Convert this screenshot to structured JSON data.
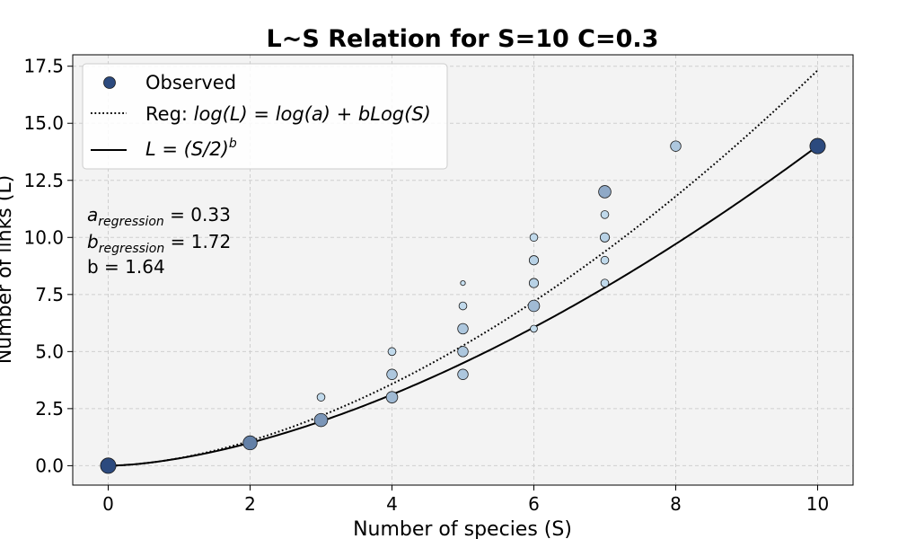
{
  "chart_data": {
    "type": "scatter",
    "title": "L~S Relation for S=10 C=0.3",
    "xlabel": "Number of species (S)",
    "ylabel": "Number of links (L)",
    "xlim": [
      -0.5,
      10.5
    ],
    "ylim": [
      -0.85,
      18.0
    ],
    "xticks": [
      0,
      2,
      4,
      6,
      8,
      10
    ],
    "yticks": [
      0.0,
      2.5,
      5.0,
      7.5,
      10.0,
      12.5,
      15.0,
      17.5
    ],
    "xtick_labels": [
      "0",
      "2",
      "4",
      "6",
      "8",
      "10"
    ],
    "ytick_labels": [
      "0.0",
      "2.5",
      "5.0",
      "7.5",
      "10.0",
      "12.5",
      "15.0",
      "17.5"
    ],
    "grid": true,
    "legend_position": "top-left",
    "legend": {
      "observed": "Observed",
      "regression_prefix": "Reg: ",
      "regression_formula": "log(L) = log(a) + bLog(S)",
      "power_formula": "L = (S/2)",
      "power_exp": "b"
    },
    "annotations": {
      "a_sub": "regression",
      "a_value": " = 0.33",
      "b_sub": "regression",
      "b_value": " = 1.72",
      "b_power": "b = 1.64"
    },
    "series": [
      {
        "name": "Observed",
        "type": "scatter",
        "points": [
          {
            "x": 0,
            "y": 0,
            "n": 10
          },
          {
            "x": 2,
            "y": 1,
            "n": 8
          },
          {
            "x": 3,
            "y": 2,
            "n": 7
          },
          {
            "x": 3,
            "y": 3,
            "n": 2
          },
          {
            "x": 4,
            "y": 3,
            "n": 5
          },
          {
            "x": 4,
            "y": 4,
            "n": 4
          },
          {
            "x": 4,
            "y": 5,
            "n": 2
          },
          {
            "x": 5,
            "y": 4,
            "n": 4
          },
          {
            "x": 5,
            "y": 5,
            "n": 4
          },
          {
            "x": 5,
            "y": 6,
            "n": 4
          },
          {
            "x": 5,
            "y": 7,
            "n": 2
          },
          {
            "x": 5,
            "y": 8,
            "n": 0.5
          },
          {
            "x": 6,
            "y": 6,
            "n": 1.5
          },
          {
            "x": 6,
            "y": 7,
            "n": 5
          },
          {
            "x": 6,
            "y": 8,
            "n": 3
          },
          {
            "x": 6,
            "y": 9,
            "n": 3
          },
          {
            "x": 6,
            "y": 10,
            "n": 2
          },
          {
            "x": 7,
            "y": 8,
            "n": 2
          },
          {
            "x": 7,
            "y": 9,
            "n": 2
          },
          {
            "x": 7,
            "y": 10,
            "n": 3
          },
          {
            "x": 7,
            "y": 11,
            "n": 2
          },
          {
            "x": 7,
            "y": 12,
            "n": 6
          },
          {
            "x": 8,
            "y": 14,
            "n": 4
          },
          {
            "x": 10,
            "y": 14,
            "n": 10
          }
        ]
      },
      {
        "name": "Reg: log(L) = log(a) + bLog(S)",
        "type": "line",
        "style": "dotted",
        "a": 0.33,
        "b": 1.72
      },
      {
        "name": "L = (S/2)^b",
        "type": "line",
        "style": "solid",
        "b": 1.64
      }
    ],
    "colors": {
      "background": "#f3f3f3",
      "grid": "#cfcfcf",
      "marker_dark": "#2c4a7e",
      "marker_light": "#c6dff0",
      "marker_edge": "#1a1a1a"
    }
  }
}
